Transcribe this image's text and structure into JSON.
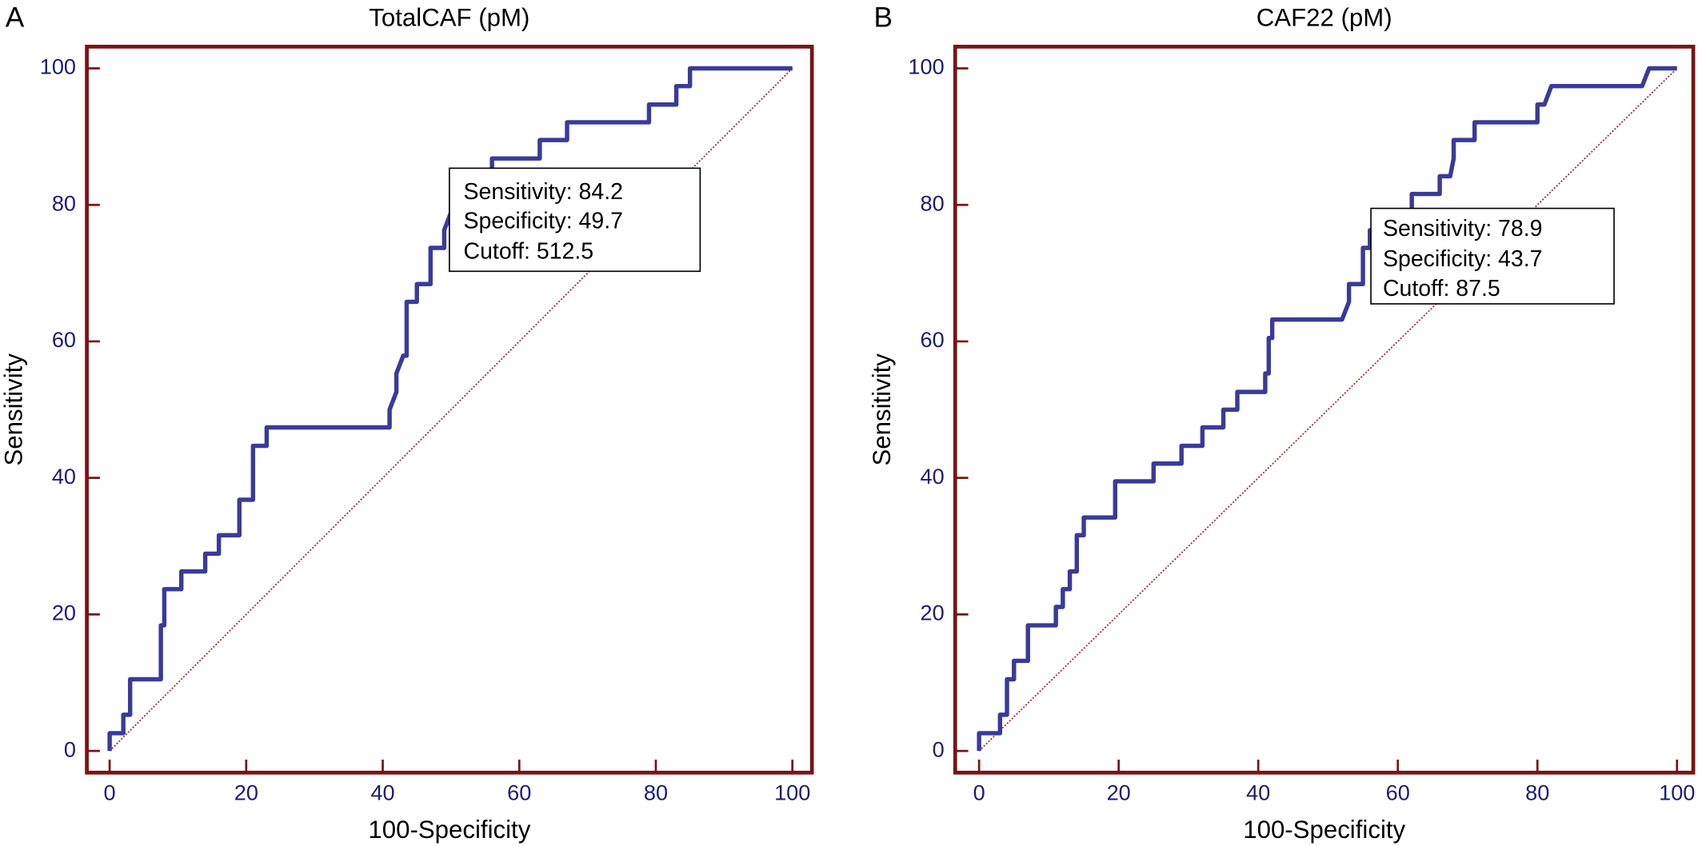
{
  "chart_data": [
    {
      "type": "line",
      "panel": "A",
      "title": "TotalCAF (pM)",
      "xlabel": "100-Specificity",
      "ylabel": "Sensitivity",
      "x": [
        0,
        0,
        2,
        2,
        3,
        3,
        7.5,
        7.5,
        8,
        8,
        10.5,
        10.5,
        14,
        14,
        16,
        16,
        19,
        19,
        21,
        21,
        23,
        23,
        41,
        41,
        42,
        42,
        43,
        43.5,
        43.5,
        45,
        45,
        47,
        47,
        49,
        49,
        50,
        50,
        52,
        52,
        56,
        56,
        63,
        63,
        67,
        67,
        79,
        79,
        83,
        83,
        85,
        85,
        100
      ],
      "series": [
        {
          "color": "#3a3a9a",
          "values": [
            0,
            2.6,
            2.6,
            5.3,
            5.3,
            10.5,
            10.5,
            18.4,
            18.4,
            23.7,
            23.7,
            26.3,
            26.3,
            28.9,
            28.9,
            31.6,
            31.6,
            36.8,
            36.8,
            44.7,
            44.7,
            47.4,
            47.4,
            50,
            52.6,
            55.3,
            57.9,
            57.9,
            65.8,
            65.8,
            68.4,
            68.4,
            73.7,
            73.7,
            76.3,
            78.9,
            81.6,
            81.6,
            84.2,
            84.2,
            86.8,
            86.8,
            89.5,
            89.5,
            92.1,
            92.1,
            94.7,
            94.7,
            97.4,
            97.4,
            100,
            100
          ]
        }
      ],
      "annotation": [
        "Sensitivity: 84.2",
        "Specificity: 49.7",
        "Cutoff: 512.5"
      ],
      "xlim": [
        0,
        100
      ],
      "ylim": [
        0,
        100
      ],
      "xticks": [
        0,
        20,
        40,
        60,
        80,
        100
      ],
      "yticks": [
        0,
        20,
        40,
        60,
        80,
        100
      ],
      "frame_color": "#7a1414",
      "diagonal_color": "#a03030",
      "tick_label_color": "#1c1c78"
    },
    {
      "type": "line",
      "panel": "B",
      "title": "CAF22 (pM)",
      "xlabel": "100-Specificity",
      "ylabel": "Sensitivity",
      "x": [
        0,
        0,
        3,
        3,
        4,
        4,
        5,
        5,
        7,
        7,
        11,
        11,
        12,
        12,
        13,
        13,
        14,
        14,
        15,
        15,
        19.5,
        19.5,
        25,
        25,
        29,
        29,
        32,
        32,
        35,
        35,
        37,
        37,
        41,
        41,
        41.5,
        41.5,
        42,
        42,
        52,
        53,
        53,
        55,
        55,
        56,
        56,
        60,
        60,
        62,
        62,
        66,
        66,
        67.5,
        68,
        68,
        71,
        71,
        80,
        80,
        81,
        82,
        95,
        96,
        100
      ],
      "series": [
        {
          "color": "#3a3a9a",
          "values": [
            0,
            2.6,
            2.6,
            5.3,
            5.3,
            10.5,
            10.5,
            13.2,
            13.2,
            18.4,
            18.4,
            21.1,
            21.1,
            23.7,
            23.7,
            26.3,
            26.3,
            31.6,
            31.6,
            34.2,
            34.2,
            39.5,
            39.5,
            42.1,
            42.1,
            44.7,
            44.7,
            47.4,
            47.4,
            50,
            50,
            52.6,
            52.6,
            55.3,
            55.3,
            60.5,
            60.5,
            63.2,
            63.2,
            65.8,
            68.4,
            68.4,
            73.7,
            73.7,
            76.3,
            76.3,
            78.9,
            78.9,
            81.6,
            81.6,
            84.2,
            84.2,
            86.8,
            89.5,
            89.5,
            92.1,
            92.1,
            94.7,
            94.7,
            97.4,
            97.4,
            100,
            100
          ]
        }
      ],
      "annotation": [
        "Sensitivity: 78.9",
        "Specificity: 43.7",
        "Cutoff: 87.5"
      ],
      "xlim": [
        0,
        100
      ],
      "ylim": [
        0,
        100
      ],
      "xticks": [
        0,
        20,
        40,
        60,
        80,
        100
      ],
      "yticks": [
        0,
        20,
        40,
        60,
        80,
        100
      ],
      "frame_color": "#7a1414",
      "diagonal_color": "#a03030",
      "tick_label_color": "#1c1c78"
    }
  ]
}
